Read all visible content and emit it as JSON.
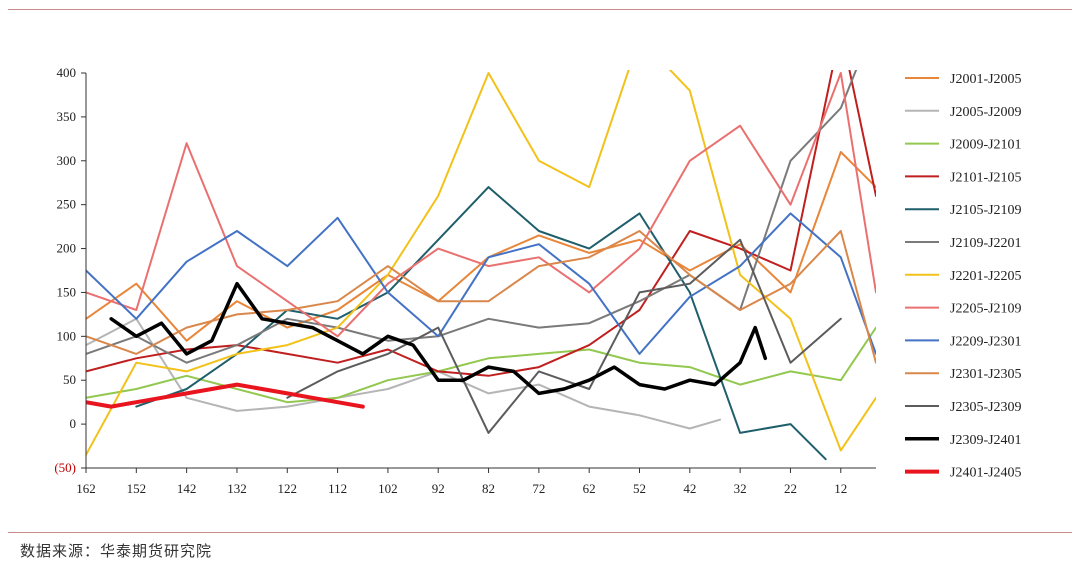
{
  "source_text": "数据来源：华泰期货研究院",
  "chart_data": {
    "type": "line",
    "title": "",
    "xlabel": "",
    "ylabel": "",
    "ylim": [
      -50,
      400
    ],
    "yticks": [
      -50,
      0,
      50,
      100,
      150,
      200,
      250,
      300,
      350,
      400
    ],
    "ytick_labels": [
      "(50)",
      "0",
      "50",
      "100",
      "150",
      "200",
      "250",
      "300",
      "350",
      "400"
    ],
    "xlim": [
      162,
      5
    ],
    "x_reversed": true,
    "xticks": [
      162,
      152,
      142,
      132,
      122,
      112,
      102,
      92,
      82,
      72,
      62,
      52,
      42,
      32,
      22,
      12
    ],
    "grid": false,
    "legend_position": "right",
    "series": [
      {
        "name": "J2001-J2005",
        "color": "#E8863A",
        "width": 2,
        "x": [
          162,
          152,
          142,
          132,
          122,
          112,
          102,
          92,
          82,
          72,
          62,
          52,
          42,
          32,
          22,
          12,
          5
        ],
        "y": [
          120,
          160,
          95,
          140,
          110,
          130,
          170,
          140,
          190,
          215,
          195,
          210,
          175,
          205,
          150,
          310,
          270
        ]
      },
      {
        "name": "J2005-J2009",
        "color": "#B5B5B5",
        "width": 2,
        "x": [
          162,
          152,
          142,
          132,
          122,
          112,
          102,
          92,
          82,
          72,
          62,
          52,
          42,
          36
        ],
        "y": [
          90,
          120,
          30,
          15,
          20,
          30,
          40,
          60,
          35,
          45,
          20,
          10,
          -5,
          5
        ]
      },
      {
        "name": "J2009-J2101",
        "color": "#92C84F",
        "width": 2,
        "x": [
          162,
          152,
          142,
          132,
          122,
          112,
          102,
          92,
          82,
          72,
          62,
          52,
          42,
          32,
          22,
          12,
          5
        ],
        "y": [
          30,
          40,
          55,
          40,
          25,
          30,
          50,
          60,
          75,
          80,
          85,
          70,
          65,
          45,
          60,
          50,
          110
        ]
      },
      {
        "name": "J2101-J2105",
        "color": "#C01F1F",
        "width": 2,
        "x": [
          162,
          152,
          142,
          132,
          122,
          112,
          102,
          92,
          82,
          72,
          62,
          52,
          42,
          32,
          22,
          12,
          5
        ],
        "y": [
          60,
          75,
          85,
          90,
          80,
          70,
          85,
          60,
          55,
          65,
          90,
          130,
          220,
          200,
          175,
          450,
          260
        ]
      },
      {
        "name": "J2105-J2109",
        "color": "#1F5F6B",
        "width": 2,
        "x": [
          152,
          142,
          132,
          122,
          112,
          102,
          92,
          82,
          72,
          62,
          52,
          42,
          32,
          22,
          15
        ],
        "y": [
          20,
          40,
          80,
          130,
          120,
          150,
          210,
          270,
          220,
          200,
          240,
          150,
          -10,
          0,
          -40
        ]
      },
      {
        "name": "J2109-J2201",
        "color": "#7A7A7A",
        "width": 2,
        "x": [
          162,
          152,
          142,
          132,
          122,
          112,
          102,
          92,
          82,
          72,
          62,
          52,
          42,
          32,
          22,
          12,
          5
        ],
        "y": [
          80,
          100,
          70,
          90,
          120,
          110,
          95,
          100,
          120,
          110,
          115,
          140,
          170,
          130,
          300,
          360,
          460
        ]
      },
      {
        "name": "J2201-J2205",
        "color": "#F2C21A",
        "width": 2,
        "x": [
          162,
          152,
          142,
          132,
          122,
          112,
          102,
          92,
          82,
          72,
          62,
          52,
          42,
          32,
          22,
          12,
          5
        ],
        "y": [
          -35,
          70,
          60,
          80,
          90,
          110,
          170,
          260,
          400,
          300,
          270,
          440,
          380,
          170,
          120,
          -30,
          30
        ]
      },
      {
        "name": "J2205-J2109",
        "color": "#EA7070",
        "width": 2,
        "x": [
          162,
          152,
          142,
          132,
          122,
          112,
          102,
          92,
          82,
          72,
          62,
          52,
          42,
          32,
          22,
          12,
          5
        ],
        "y": [
          150,
          130,
          320,
          180,
          140,
          100,
          160,
          200,
          180,
          190,
          150,
          200,
          300,
          340,
          250,
          400,
          150
        ]
      },
      {
        "name": "J2209-J2301",
        "color": "#4472C4",
        "width": 2,
        "x": [
          162,
          152,
          142,
          132,
          122,
          112,
          102,
          92,
          82,
          72,
          62,
          52,
          42,
          32,
          22,
          12,
          5
        ],
        "y": [
          175,
          120,
          185,
          220,
          180,
          235,
          150,
          100,
          190,
          205,
          160,
          80,
          145,
          180,
          240,
          190,
          80
        ]
      },
      {
        "name": "J2301-J2305",
        "color": "#D9874A",
        "width": 2,
        "x": [
          162,
          152,
          142,
          132,
          122,
          112,
          102,
          92,
          82,
          72,
          62,
          52,
          42,
          32,
          22,
          12,
          5
        ],
        "y": [
          100,
          80,
          110,
          125,
          130,
          140,
          180,
          140,
          140,
          180,
          190,
          220,
          170,
          130,
          160,
          220,
          70
        ]
      },
      {
        "name": "J2305-J2309",
        "color": "#5C5C5C",
        "width": 2,
        "x": [
          122,
          112,
          102,
          92,
          82,
          72,
          62,
          52,
          42,
          32,
          22,
          12
        ],
        "y": [
          30,
          60,
          80,
          110,
          -10,
          60,
          40,
          150,
          160,
          210,
          70,
          120
        ]
      },
      {
        "name": "J2309-J2401",
        "color": "#000000",
        "width": 3.5,
        "x": [
          157,
          152,
          147,
          142,
          137,
          132,
          127,
          122,
          117,
          112,
          107,
          102,
          97,
          92,
          87,
          82,
          77,
          72,
          67,
          62,
          57,
          52,
          47,
          42,
          37,
          32,
          29,
          27
        ],
        "y": [
          120,
          100,
          115,
          80,
          95,
          160,
          120,
          115,
          110,
          95,
          80,
          100,
          90,
          50,
          50,
          65,
          60,
          35,
          40,
          50,
          65,
          45,
          40,
          50,
          45,
          70,
          110,
          75
        ]
      },
      {
        "name": "J2401-J2405",
        "color": "#E8141E",
        "width": 4,
        "x": [
          162,
          157,
          152,
          147,
          142,
          137,
          132,
          127,
          122,
          117,
          112,
          107
        ],
        "y": [
          25,
          20,
          25,
          30,
          35,
          40,
          45,
          40,
          35,
          30,
          25,
          20
        ]
      }
    ]
  }
}
